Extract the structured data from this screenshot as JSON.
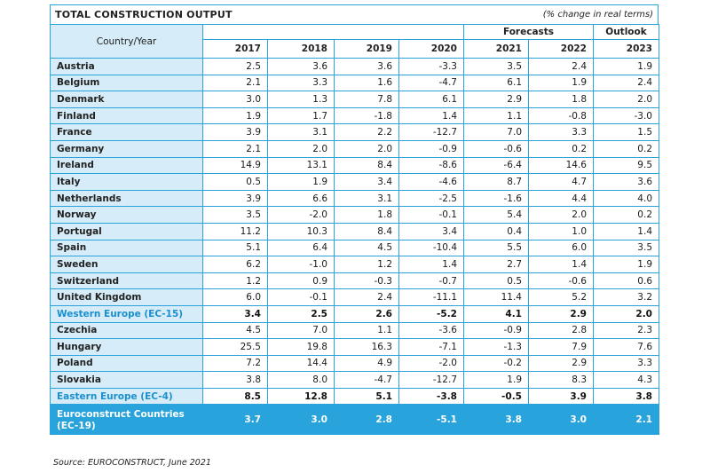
{
  "header": {
    "title": "TOTAL CONSTRUCTION OUTPUT",
    "unit_note": "(% change in real terms)"
  },
  "table": {
    "corner_label": "Country/Year",
    "group_labels": {
      "forecasts": "Forecasts",
      "outlook": "Outlook"
    },
    "years": [
      "2017",
      "2018",
      "2019",
      "2020",
      "2021",
      "2022",
      "2023"
    ],
    "rows": [
      {
        "country": "Austria",
        "values": [
          "2.5",
          "3.6",
          "3.6",
          "-3.3",
          "3.5",
          "2.4",
          "1.9"
        ]
      },
      {
        "country": "Belgium",
        "values": [
          "2.1",
          "3.3",
          "1.6",
          "-4.7",
          "6.1",
          "1.9",
          "2.4"
        ]
      },
      {
        "country": "Denmark",
        "values": [
          "3.0",
          "1.3",
          "7.8",
          "6.1",
          "2.9",
          "1.8",
          "2.0"
        ]
      },
      {
        "country": "Finland",
        "values": [
          "1.9",
          "1.7",
          "-1.8",
          "1.4",
          "1.1",
          "-0.8",
          "-3.0"
        ]
      },
      {
        "country": "France",
        "values": [
          "3.9",
          "3.1",
          "2.2",
          "-12.7",
          "7.0",
          "3.3",
          "1.5"
        ]
      },
      {
        "country": "Germany",
        "values": [
          "2.1",
          "2.0",
          "2.0",
          "-0.9",
          "-0.6",
          "0.2",
          "0.2"
        ]
      },
      {
        "country": "Ireland",
        "values": [
          "14.9",
          "13.1",
          "8.4",
          "-8.6",
          "-6.4",
          "14.6",
          "9.5"
        ]
      },
      {
        "country": "Italy",
        "values": [
          "0.5",
          "1.9",
          "3.4",
          "-4.6",
          "8.7",
          "4.7",
          "3.6"
        ]
      },
      {
        "country": "Netherlands",
        "values": [
          "3.9",
          "6.6",
          "3.1",
          "-2.5",
          "-1.6",
          "4.4",
          "4.0"
        ]
      },
      {
        "country": "Norway",
        "values": [
          "3.5",
          "-2.0",
          "1.8",
          "-0.1",
          "5.4",
          "2.0",
          "0.2"
        ]
      },
      {
        "country": "Portugal",
        "values": [
          "11.2",
          "10.3",
          "8.4",
          "3.4",
          "0.4",
          "1.0",
          "1.4"
        ]
      },
      {
        "country": "Spain",
        "values": [
          "5.1",
          "6.4",
          "4.5",
          "-10.4",
          "5.5",
          "6.0",
          "3.5"
        ]
      },
      {
        "country": "Sweden",
        "values": [
          "6.2",
          "-1.0",
          "1.2",
          "1.4",
          "2.7",
          "1.4",
          "1.9"
        ]
      },
      {
        "country": "Switzerland",
        "values": [
          "1.2",
          "0.9",
          "-0.3",
          "-0.7",
          "0.5",
          "-0.6",
          "0.6"
        ]
      },
      {
        "country": "United Kingdom",
        "values": [
          "6.0",
          "-0.1",
          "2.4",
          "-11.1",
          "11.4",
          "5.2",
          "3.2"
        ]
      },
      {
        "country": "Western Europe (EC-15)",
        "values": [
          "3.4",
          "2.5",
          "2.6",
          "-5.2",
          "4.1",
          "2.9",
          "2.0"
        ],
        "kind": "region"
      },
      {
        "country": "Czechia",
        "values": [
          "4.5",
          "7.0",
          "1.1",
          "-3.6",
          "-0.9",
          "2.8",
          "2.3"
        ]
      },
      {
        "country": "Hungary",
        "values": [
          "25.5",
          "19.8",
          "16.3",
          "-7.1",
          "-1.3",
          "7.9",
          "7.6"
        ]
      },
      {
        "country": "Poland",
        "values": [
          "7.2",
          "14.4",
          "4.9",
          "-2.0",
          "-0.2",
          "2.9",
          "3.3"
        ]
      },
      {
        "country": "Slovakia",
        "values": [
          "3.8",
          "8.0",
          "-4.7",
          "-12.7",
          "1.9",
          "8.3",
          "4.3"
        ]
      },
      {
        "country": "Eastern Europe (EC-4)",
        "values": [
          "8.5",
          "12.8",
          "5.1",
          "-3.8",
          "-0.5",
          "3.9",
          "3.8"
        ],
        "kind": "region"
      }
    ],
    "total": {
      "country": "Euroconstruct Countries (EC-19)",
      "values": [
        "3.7",
        "3.0",
        "2.8",
        "-5.1",
        "3.8",
        "3.0",
        "2.1"
      ]
    }
  },
  "footer": {
    "source": "Source: EUROCONSTRUCT, June 2021"
  },
  "colors": {
    "accent": "#29a3dc",
    "row_label_bg": "#d6ecf8",
    "region_text": "#1a8fcf"
  }
}
